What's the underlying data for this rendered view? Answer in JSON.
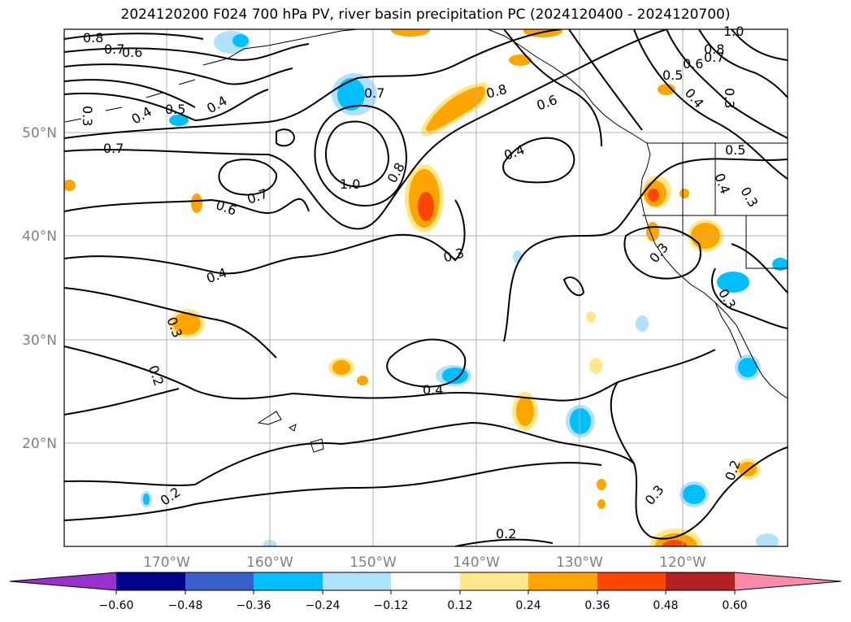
{
  "title": "2024120200 F024 700 hPa PV, river basin precipitation PC (2024120400 - 2024120700)",
  "map": {
    "lon_labels": [
      "170°W",
      "160°W",
      "150°W",
      "140°W",
      "130°W",
      "120°W"
    ],
    "lat_labels": [
      "50°N",
      "40°N",
      "30°N",
      "20°N"
    ],
    "contour_labels": [
      "0.8",
      "0.7",
      "0.6",
      "0.3",
      "0.4",
      "0.5",
      "0.4",
      "0.7",
      "1.0",
      "0.8",
      "0.7",
      "0.6",
      "0.7",
      "0.4",
      "0.3",
      "0.4",
      "0.3",
      "0.2",
      "0.4",
      "0.2",
      "0.2",
      "0.3",
      "0.2",
      "0.8",
      "1.0",
      "0.8",
      "0.7",
      "0.6",
      "0.5",
      "0.4",
      "0.3",
      "0.5",
      "0.4",
      "0.3",
      "0.3",
      "0.3",
      "0.6"
    ],
    "grid": true,
    "colors": {
      "coast": "#000000",
      "grid": "#b0b0b0",
      "contour": "#000000"
    }
  },
  "colorbar": {
    "tick_labels": [
      "−0.60",
      "−0.48",
      "−0.36",
      "−0.24",
      "−0.12",
      "0.12",
      "0.24",
      "0.36",
      "0.48",
      "0.60"
    ],
    "bins": [
      {
        "color": "#9932cc"
      },
      {
        "color": "#00008b"
      },
      {
        "color": "#3a5fcd"
      },
      {
        "color": "#00bfff"
      },
      {
        "color": "#b0e2ff"
      },
      {
        "color": "#ffffff"
      },
      {
        "color": "#ffe88a"
      },
      {
        "color": "#ffa500"
      },
      {
        "color": "#ff4500"
      },
      {
        "color": "#b22222"
      },
      {
        "color": "#ff89a8"
      }
    ]
  }
}
